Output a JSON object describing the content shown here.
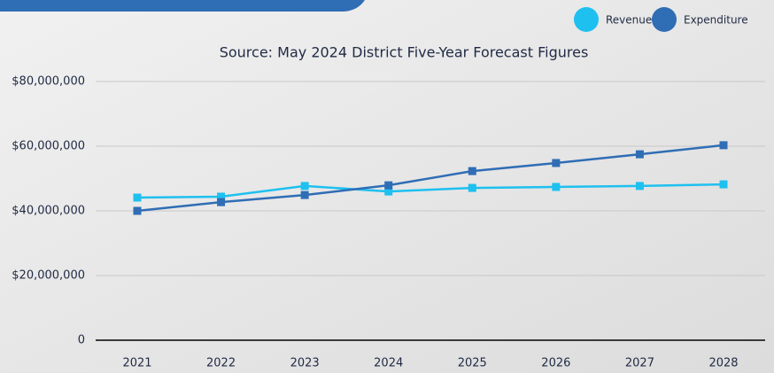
{
  "chart_data": {
    "type": "line",
    "title": "Source: May 2024 District Five-Year Forecast Figures",
    "categories": [
      "2021",
      "2022",
      "2023",
      "2024",
      "2025",
      "2026",
      "2027",
      "2028"
    ],
    "series": [
      {
        "name": "Revenue",
        "color": "#1ec0ef",
        "values": [
          44100000,
          44400000,
          47700000,
          46000000,
          47100000,
          47400000,
          47700000,
          48200000
        ]
      },
      {
        "name": "Expenditure",
        "color": "#2f6db5",
        "values": [
          40000000,
          42700000,
          44900000,
          47900000,
          52300000,
          54800000,
          57500000,
          60300000
        ]
      }
    ],
    "ylim": [
      0,
      80000000
    ],
    "yticks": [
      0,
      {
        "value": 20000000,
        "label": "$20,000,000"
      },
      {
        "value": 40000000,
        "label": "$40,000,000"
      },
      {
        "value": 60000000,
        "label": "$60,000,000"
      },
      {
        "value": 80000000,
        "label": "$80,000,000"
      }
    ],
    "grid": true,
    "legend": "top-right"
  }
}
